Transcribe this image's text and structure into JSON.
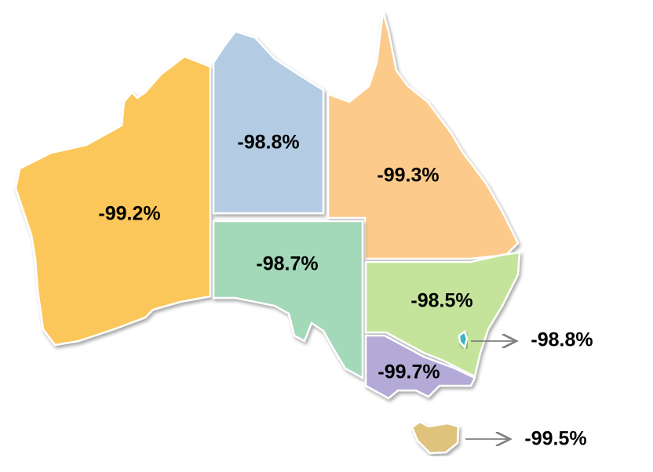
{
  "regions": [
    {
      "id": "wa",
      "value": "-99.2%",
      "color": "#FCC75A"
    },
    {
      "id": "nt",
      "value": "-98.8%",
      "color": "#B3CCE3"
    },
    {
      "id": "qld",
      "value": "-99.3%",
      "color": "#FCCB8C"
    },
    {
      "id": "sa",
      "value": "-98.7%",
      "color": "#A3D8B9"
    },
    {
      "id": "nsw",
      "value": "-98.5%",
      "color": "#C5E49B"
    },
    {
      "id": "vic",
      "value": "-99.7%",
      "color": "#B4AAD7"
    },
    {
      "id": "act",
      "value": "-98.8%",
      "color": "#3BB3C3"
    },
    {
      "id": "tas",
      "value": "-99.5%",
      "color": "#DFC27C"
    }
  ],
  "arrow_color": "#808080"
}
